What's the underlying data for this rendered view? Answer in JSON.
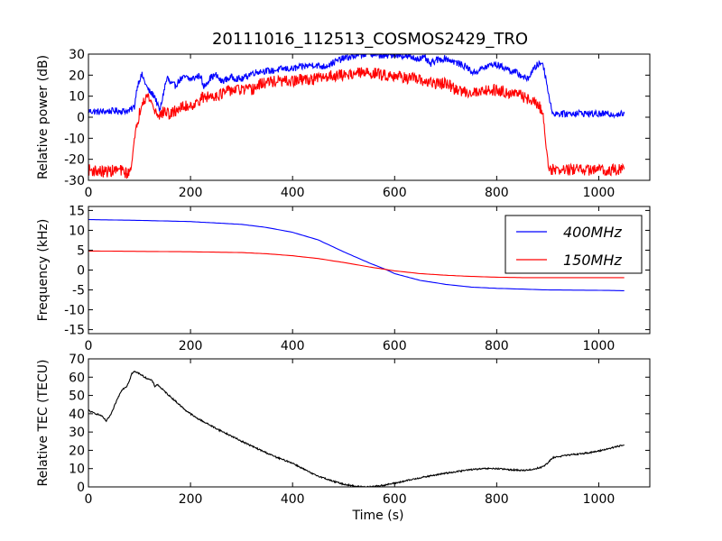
{
  "figure": {
    "title": "20111016_112513_COSMOS2429_TRO"
  },
  "chart_data": [
    {
      "type": "line",
      "ylabel": "Relative power (dB)",
      "xlabel": "",
      "xlim": [
        0,
        1100
      ],
      "ylim": [
        -30,
        30
      ],
      "xticks": [
        0,
        200,
        400,
        600,
        800,
        1000
      ],
      "yticks": [
        -30,
        -20,
        -10,
        0,
        10,
        20,
        30
      ],
      "grid": false,
      "series": [
        {
          "color": "#0000ff",
          "noise": 1.6,
          "points": [
            [
              0,
              3
            ],
            [
              20,
              2.5
            ],
            [
              50,
              3
            ],
            [
              80,
              3
            ],
            [
              90,
              5
            ],
            [
              95,
              14
            ],
            [
              100,
              18
            ],
            [
              105,
              20
            ],
            [
              110,
              17
            ],
            [
              115,
              14
            ],
            [
              120,
              12
            ],
            [
              130,
              10
            ],
            [
              135,
              6
            ],
            [
              140,
              3
            ],
            [
              145,
              9
            ],
            [
              150,
              15
            ],
            [
              155,
              19
            ],
            [
              160,
              16
            ],
            [
              170,
              15
            ],
            [
              180,
              18
            ],
            [
              190,
              19
            ],
            [
              200,
              18
            ],
            [
              210,
              19
            ],
            [
              220,
              20
            ],
            [
              225,
              14
            ],
            [
              230,
              16
            ],
            [
              240,
              19
            ],
            [
              250,
              20
            ],
            [
              260,
              17
            ],
            [
              270,
              18
            ],
            [
              280,
              19
            ],
            [
              300,
              18
            ],
            [
              320,
              21
            ],
            [
              340,
              22
            ],
            [
              360,
              22
            ],
            [
              380,
              23
            ],
            [
              400,
              23
            ],
            [
              420,
              24
            ],
            [
              440,
              25
            ],
            [
              460,
              24
            ],
            [
              480,
              26
            ],
            [
              500,
              28
            ],
            [
              520,
              29
            ],
            [
              540,
              30
            ],
            [
              560,
              30
            ],
            [
              580,
              29
            ],
            [
              600,
              30
            ],
            [
              620,
              29
            ],
            [
              640,
              28
            ],
            [
              660,
              28
            ],
            [
              670,
              25
            ],
            [
              680,
              27
            ],
            [
              700,
              28
            ],
            [
              720,
              26
            ],
            [
              740,
              24
            ],
            [
              755,
              21
            ],
            [
              770,
              23
            ],
            [
              790,
              25
            ],
            [
              800,
              25
            ],
            [
              820,
              23
            ],
            [
              840,
              21
            ],
            [
              860,
              18
            ],
            [
              870,
              22
            ],
            [
              880,
              25
            ],
            [
              890,
              26
            ],
            [
              895,
              20
            ],
            [
              900,
              14
            ],
            [
              905,
              6
            ],
            [
              910,
              2
            ],
            [
              930,
              1.5
            ],
            [
              960,
              2
            ],
            [
              1000,
              1.5
            ],
            [
              1030,
              1.5
            ],
            [
              1050,
              1.5
            ]
          ]
        },
        {
          "color": "#ff0000",
          "noise": 2.8,
          "points": [
            [
              0,
              -25
            ],
            [
              30,
              -26
            ],
            [
              60,
              -25
            ],
            [
              80,
              -27
            ],
            [
              85,
              -20
            ],
            [
              90,
              -12
            ],
            [
              95,
              -4
            ],
            [
              100,
              2
            ],
            [
              105,
              8
            ],
            [
              110,
              9
            ],
            [
              115,
              10
            ],
            [
              120,
              9
            ],
            [
              125,
              6
            ],
            [
              130,
              3
            ],
            [
              140,
              1
            ],
            [
              150,
              3
            ],
            [
              160,
              1
            ],
            [
              175,
              4
            ],
            [
              190,
              5
            ],
            [
              200,
              6
            ],
            [
              210,
              6
            ],
            [
              220,
              9
            ],
            [
              240,
              10
            ],
            [
              260,
              11
            ],
            [
              280,
              13
            ],
            [
              300,
              13
            ],
            [
              320,
              13
            ],
            [
              340,
              16
            ],
            [
              360,
              17
            ],
            [
              380,
              17
            ],
            [
              400,
              17
            ],
            [
              420,
              18
            ],
            [
              440,
              18
            ],
            [
              460,
              19
            ],
            [
              480,
              20
            ],
            [
              500,
              20
            ],
            [
              520,
              21
            ],
            [
              540,
              21
            ],
            [
              560,
              21
            ],
            [
              580,
              20
            ],
            [
              600,
              20
            ],
            [
              620,
              19
            ],
            [
              640,
              18
            ],
            [
              660,
              17
            ],
            [
              680,
              16
            ],
            [
              700,
              16
            ],
            [
              720,
              13
            ],
            [
              740,
              12
            ],
            [
              760,
              12
            ],
            [
              780,
              13
            ],
            [
              800,
              13
            ],
            [
              820,
              12
            ],
            [
              840,
              11
            ],
            [
              860,
              9
            ],
            [
              880,
              6
            ],
            [
              890,
              3
            ],
            [
              895,
              -10
            ],
            [
              900,
              -20
            ],
            [
              905,
              -25
            ],
            [
              920,
              -25
            ],
            [
              950,
              -25
            ],
            [
              1000,
              -25
            ],
            [
              1050,
              -25
            ]
          ]
        }
      ]
    },
    {
      "type": "line",
      "ylabel": "Frequency (kHz)",
      "xlabel": "",
      "xlim": [
        0,
        1100
      ],
      "ylim": [
        -16,
        16
      ],
      "xticks": [
        0,
        200,
        400,
        600,
        800,
        1000
      ],
      "yticks": [
        -15,
        -10,
        -5,
        0,
        5,
        10,
        15
      ],
      "grid": false,
      "legend": "top-right",
      "series": [
        {
          "name": "400MHz",
          "color": "#0000ff",
          "noise": 0,
          "points": [
            [
              0,
              12.7
            ],
            [
              100,
              12.5
            ],
            [
              200,
              12.2
            ],
            [
              300,
              11.5
            ],
            [
              350,
              10.7
            ],
            [
              400,
              9.5
            ],
            [
              450,
              7.6
            ],
            [
              500,
              4.6
            ],
            [
              550,
              1.8
            ],
            [
              580,
              0.3
            ],
            [
              600,
              -0.9
            ],
            [
              650,
              -2.6
            ],
            [
              700,
              -3.6
            ],
            [
              750,
              -4.3
            ],
            [
              800,
              -4.6
            ],
            [
              850,
              -4.8
            ],
            [
              900,
              -5.0
            ],
            [
              1000,
              -5.1
            ],
            [
              1050,
              -5.2
            ]
          ]
        },
        {
          "name": "150MHz",
          "color": "#ff0000",
          "noise": 0,
          "points": [
            [
              0,
              4.8
            ],
            [
              100,
              4.7
            ],
            [
              200,
              4.6
            ],
            [
              300,
              4.4
            ],
            [
              350,
              4.1
            ],
            [
              400,
              3.6
            ],
            [
              450,
              2.9
            ],
            [
              500,
              1.9
            ],
            [
              550,
              0.8
            ],
            [
              580,
              0.2
            ],
            [
              600,
              -0.2
            ],
            [
              650,
              -0.9
            ],
            [
              700,
              -1.3
            ],
            [
              750,
              -1.6
            ],
            [
              800,
              -1.8
            ],
            [
              850,
              -1.9
            ],
            [
              900,
              -1.9
            ],
            [
              1000,
              -1.9
            ],
            [
              1050,
              -1.9
            ]
          ]
        }
      ]
    },
    {
      "type": "line",
      "ylabel": "Relative TEC (TECU)",
      "xlabel": "Time (s)",
      "xlim": [
        0,
        1100
      ],
      "ylim": [
        0,
        70
      ],
      "xticks": [
        0,
        200,
        400,
        600,
        800,
        1000
      ],
      "yticks": [
        0,
        10,
        20,
        30,
        40,
        50,
        60,
        70
      ],
      "grid": false,
      "series": [
        {
          "color": "#000000",
          "noise": 0.4,
          "points": [
            [
              0,
              42
            ],
            [
              5,
              41
            ],
            [
              15,
              40
            ],
            [
              25,
              39
            ],
            [
              35,
              36
            ],
            [
              45,
              40
            ],
            [
              55,
              47
            ],
            [
              65,
              53
            ],
            [
              75,
              55
            ],
            [
              80,
              58
            ],
            [
              85,
              62
            ],
            [
              90,
              63
            ],
            [
              100,
              62
            ],
            [
              110,
              60
            ],
            [
              125,
              58
            ],
            [
              130,
              55
            ],
            [
              135,
              56
            ],
            [
              150,
              52
            ],
            [
              170,
              47
            ],
            [
              190,
              42
            ],
            [
              210,
              38
            ],
            [
              250,
              32
            ],
            [
              300,
              25
            ],
            [
              330,
              21
            ],
            [
              370,
              16
            ],
            [
              400,
              13
            ],
            [
              440,
              7
            ],
            [
              460,
              5
            ],
            [
              480,
              3
            ],
            [
              500,
              1.5
            ],
            [
              520,
              0.5
            ],
            [
              540,
              0
            ],
            [
              560,
              0.3
            ],
            [
              580,
              1
            ],
            [
              600,
              2
            ],
            [
              650,
              5
            ],
            [
              700,
              7.5
            ],
            [
              750,
              9.5
            ],
            [
              780,
              10
            ],
            [
              800,
              10
            ],
            [
              820,
              9.5
            ],
            [
              850,
              9
            ],
            [
              870,
              9.5
            ],
            [
              890,
              11
            ],
            [
              900,
              13
            ],
            [
              910,
              16
            ],
            [
              930,
              17
            ],
            [
              960,
              18
            ],
            [
              990,
              19
            ],
            [
              1020,
              21
            ],
            [
              1050,
              23
            ]
          ]
        }
      ]
    }
  ]
}
